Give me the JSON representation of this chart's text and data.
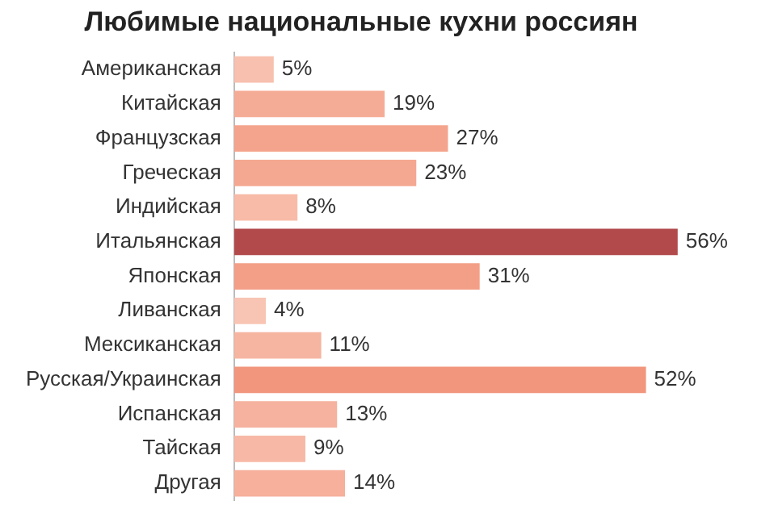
{
  "chart_data": {
    "type": "bar",
    "orientation": "horizontal",
    "title": "Любимые национальные кухни россиян",
    "categories": [
      "Американская",
      "Китайская",
      "Французская",
      "Греческая",
      "Индийская",
      "Итальянская",
      "Японская",
      "Ливанская",
      "Мексиканская",
      "Русская/Украинская",
      "Испанская",
      "Тайская",
      "Другая"
    ],
    "values": [
      5,
      19,
      27,
      23,
      8,
      56,
      31,
      4,
      11,
      52,
      13,
      9,
      14
    ],
    "value_labels": [
      "5%",
      "19%",
      "27%",
      "23%",
      "8%",
      "56%",
      "31%",
      "4%",
      "11%",
      "52%",
      "13%",
      "9%",
      "14%"
    ],
    "colors": [
      "#f8c0ae",
      "#f5ac96",
      "#f4a48c",
      "#f5a891",
      "#f8bba8",
      "#b24a4c",
      "#f39f87",
      "#f8c4b3",
      "#f6b5a1",
      "#f2967e",
      "#f6b29e",
      "#f7b9a6",
      "#f6b09b"
    ],
    "grid": false,
    "legend": false,
    "tick_labels": "y"
  }
}
